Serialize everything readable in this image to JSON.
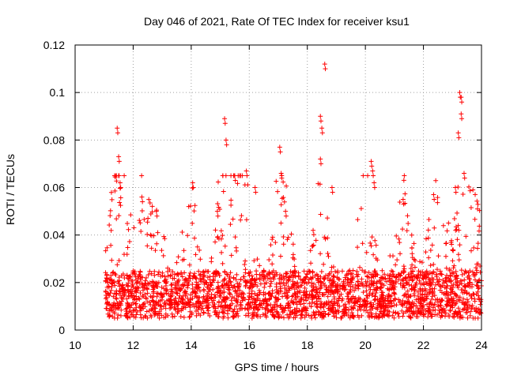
{
  "chart_data": {
    "type": "scatter",
    "title": "Day 046 of 2021, Rate Of TEC Index for receiver ksu1",
    "xlabel": "GPS time / hours",
    "ylabel": "ROTI / TECUs",
    "xlim": [
      10,
      24
    ],
    "ylim": [
      0,
      0.12
    ],
    "xticks": [
      10,
      12,
      14,
      16,
      18,
      20,
      22,
      24
    ],
    "yticks": [
      0,
      0.02,
      0.04,
      0.06,
      0.08,
      0.1,
      0.12
    ],
    "xtick_labels": [
      "10",
      "12",
      "14",
      "16",
      "18",
      "20",
      "22",
      "24"
    ],
    "ytick_labels": [
      "0",
      "0.02",
      "0.04",
      "0.06",
      "0.08",
      "0.1",
      "0.12"
    ],
    "grid": true,
    "marker": "+",
    "color": "#ff0000",
    "data_range_x": [
      11.05,
      24.0
    ],
    "baseline_band": [
      0.005,
      0.025
    ],
    "peaks": [
      {
        "x": 11.45,
        "y": 0.085
      },
      {
        "x": 11.5,
        "y": 0.073
      },
      {
        "x": 11.55,
        "y": 0.062
      },
      {
        "x": 12.3,
        "y": 0.056
      },
      {
        "x": 12.8,
        "y": 0.05
      },
      {
        "x": 14.05,
        "y": 0.062
      },
      {
        "x": 14.9,
        "y": 0.05
      },
      {
        "x": 15.15,
        "y": 0.089
      },
      {
        "x": 15.2,
        "y": 0.08
      },
      {
        "x": 15.5,
        "y": 0.065
      },
      {
        "x": 15.9,
        "y": 0.067
      },
      {
        "x": 16.2,
        "y": 0.06
      },
      {
        "x": 17.05,
        "y": 0.077
      },
      {
        "x": 17.1,
        "y": 0.066
      },
      {
        "x": 17.25,
        "y": 0.05
      },
      {
        "x": 18.45,
        "y": 0.09
      },
      {
        "x": 18.5,
        "y": 0.085
      },
      {
        "x": 18.6,
        "y": 0.112
      },
      {
        "x": 18.45,
        "y": 0.072
      },
      {
        "x": 18.85,
        "y": 0.06
      },
      {
        "x": 20.2,
        "y": 0.071
      },
      {
        "x": 20.25,
        "y": 0.067
      },
      {
        "x": 20.3,
        "y": 0.062
      },
      {
        "x": 21.3,
        "y": 0.055
      },
      {
        "x": 22.35,
        "y": 0.057
      },
      {
        "x": 23.1,
        "y": 0.06
      },
      {
        "x": 23.25,
        "y": 0.1
      },
      {
        "x": 23.3,
        "y": 0.098
      },
      {
        "x": 23.3,
        "y": 0.091
      },
      {
        "x": 23.2,
        "y": 0.083
      },
      {
        "x": 23.4,
        "y": 0.066
      },
      {
        "x": 23.2,
        "y": 0.044
      }
    ]
  }
}
